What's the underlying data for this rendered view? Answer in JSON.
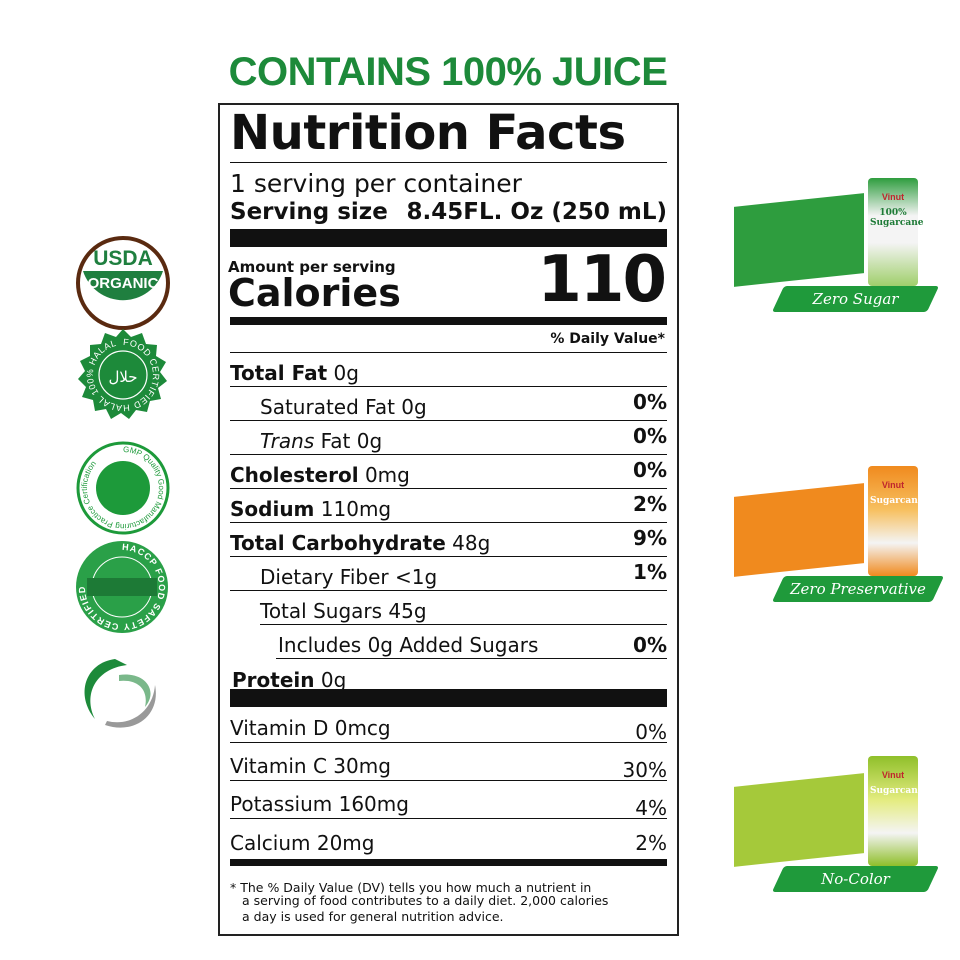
{
  "headline": "CONTAINS 100% JUICE",
  "label": {
    "title": "Nutrition Facts",
    "servings": "1 serving per container",
    "serving_size_label": "Serving size",
    "serving_size_value": "8.45FL. Oz (250 mL)",
    "amount_per_serving": "Amount per serving",
    "calories_label": "Calories",
    "calories_value": "110",
    "dv_header": "% Daily Value*",
    "nutrients": [
      {
        "name": "Total Fat",
        "amount": "0g",
        "dv": ""
      },
      {
        "name": "Saturated Fat",
        "amount": "0g",
        "dv": "0%"
      },
      {
        "name": "Trans",
        "suffix": "Fat 0g",
        "dv": "0%"
      },
      {
        "name": "Cholesterol",
        "amount": "0mg",
        "dv": "0%"
      },
      {
        "name": "Sodium",
        "amount": "110mg",
        "dv": "2%"
      },
      {
        "name": "Total Carbohydrate",
        "amount": "48g",
        "dv": "9%"
      },
      {
        "name": "Dietary Fiber",
        "amount": "<1g",
        "dv": "1%"
      },
      {
        "name": "Total Sugars",
        "amount": "45g",
        "dv": ""
      },
      {
        "name": "Includes 0g Added Sugars",
        "amount": "",
        "dv": "0%"
      },
      {
        "name": "Protein",
        "amount": "0g",
        "dv": ""
      }
    ],
    "vitamins": [
      {
        "name": "Vitamin D 0mcg",
        "dv": "0%"
      },
      {
        "name": "Vitamin C 30mg",
        "dv": "30%"
      },
      {
        "name": "Potassium 160mg",
        "dv": "4%"
      },
      {
        "name": "Calcium 20mg",
        "dv": "2%"
      }
    ],
    "footnote_1": "* The % Daily Value (DV) tells you how much a nutrient in",
    "footnote_2": "a serving of food contributes to a daily diet. 2,000 calories",
    "footnote_3": "a day is used for general nutrition advice."
  },
  "badges": [
    {
      "icon": "usda-organic-icon",
      "text": "USDA ORGANIC"
    },
    {
      "icon": "halal-icon",
      "text": "FOOD CERTIFIED HALAL 100% HALAL"
    },
    {
      "icon": "gmp-icon",
      "text": "GMP Quality Good Manufacturing Practice Certification"
    },
    {
      "icon": "haccp-icon",
      "text": "HACCP FOOD SAFETY CERTIFIED"
    },
    {
      "icon": "swirl-logo-icon",
      "text": ""
    }
  ],
  "products": [
    {
      "ribbon": "Zero Sugar",
      "brand": "Vinut",
      "can_text": "100% Sugarcane",
      "color": "#2e9d3e"
    },
    {
      "ribbon": "Zero Preservative",
      "brand": "Vinut",
      "can_text": "Sugarcane",
      "color": "#f08a1e"
    },
    {
      "ribbon": "No-Color",
      "brand": "Vinut",
      "can_text": "Sugarcane",
      "color": "#a5c93a"
    }
  ],
  "colors": {
    "brand_green": "#1d8a3a",
    "ribbon_green": "#1f9a3b"
  }
}
